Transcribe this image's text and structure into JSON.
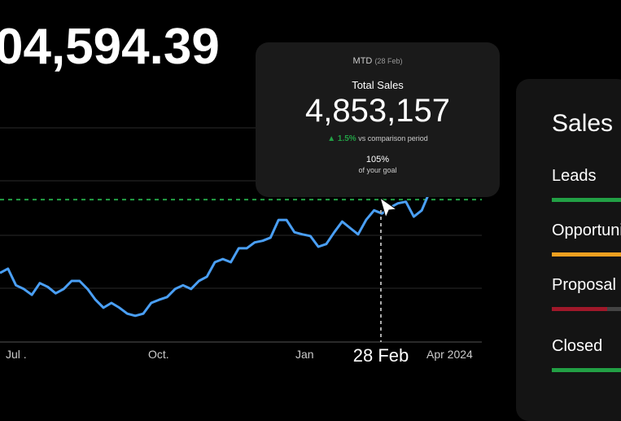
{
  "headline": "04,594.39",
  "chart": {
    "x_labels": [
      "Jul .",
      "Oct.",
      "Jan",
      "Apr 2024"
    ],
    "hover_label": "28 Feb",
    "values": [
      1.29,
      1.37,
      1.06,
      0.99,
      0.88,
      1.1,
      1.03,
      0.91,
      0.99,
      1.14,
      1.14,
      0.99,
      0.79,
      0.64,
      0.73,
      0.64,
      0.53,
      0.49,
      0.53,
      0.73,
      0.79,
      0.84,
      0.99,
      1.06,
      0.99,
      1.14,
      1.22,
      1.49,
      1.55,
      1.49,
      1.75,
      1.75,
      1.86,
      1.89,
      1.95,
      2.28,
      2.28,
      2.05,
      2.01,
      1.98,
      1.78,
      1.83,
      2.05,
      2.25,
      2.13,
      2.01,
      2.28,
      2.46,
      2.4,
      2.51,
      2.59,
      2.62,
      2.34,
      2.46,
      2.81
    ],
    "goal": 2.66,
    "ylim": [
      0,
      4
    ],
    "color": "#4a9ff5",
    "goal_color": "#22a045"
  },
  "tooltip": {
    "period": "MTD",
    "date": "(28 Feb)",
    "label": "Total Sales",
    "value": "4,853,157",
    "change": "1.5%",
    "change_note": "vs comparison period",
    "goal_pct": "105%",
    "goal_note": "of your goal"
  },
  "panel": {
    "title": "Sales",
    "rows": [
      {
        "label": "Leads",
        "color": "#22a045"
      },
      {
        "label": "Opportunities",
        "color": "#f0a020"
      },
      {
        "label": "Proposal",
        "color": "#a0182a"
      },
      {
        "label": "Closed",
        "color": "#22a045"
      }
    ]
  }
}
